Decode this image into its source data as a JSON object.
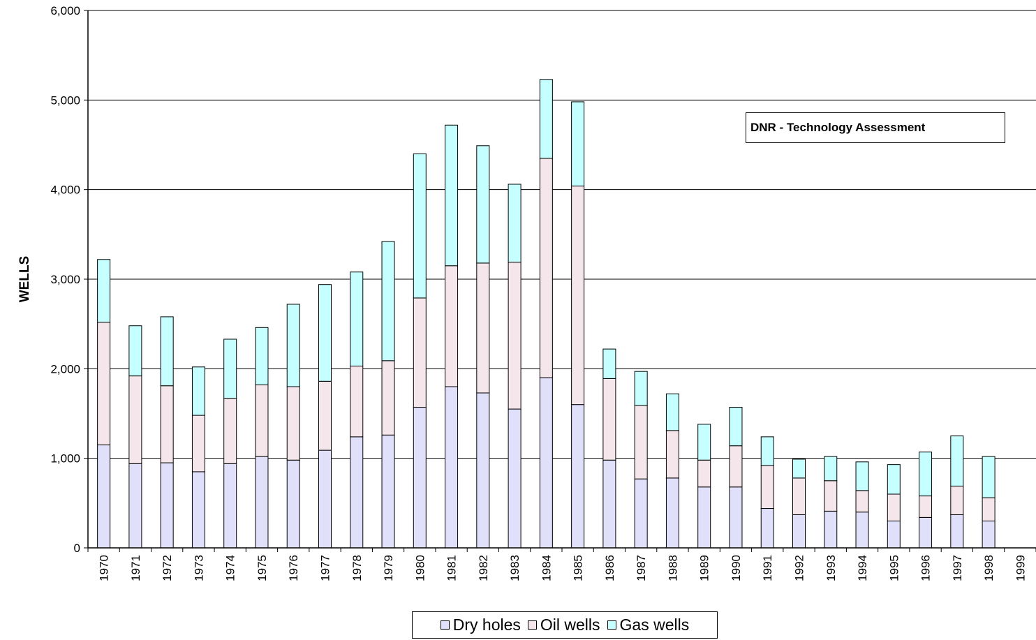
{
  "chart_data": {
    "type": "bar",
    "stacked": true,
    "title": "",
    "xlabel": "",
    "ylabel": "WELLS",
    "ylim": [
      0,
      6000
    ],
    "yticks": [
      "0",
      "1,000",
      "2,000",
      "3,000",
      "4,000",
      "5,000",
      "6,000"
    ],
    "grid": true,
    "legend_position": "bottom",
    "annotation": "DNR - Technology Assessment",
    "categories": [
      "1970",
      "1971",
      "1972",
      "1973",
      "1974",
      "1975",
      "1976",
      "1977",
      "1978",
      "1979",
      "1980",
      "1981",
      "1982",
      "1983",
      "1984",
      "1985",
      "1986",
      "1987",
      "1988",
      "1989",
      "1990",
      "1991",
      "1992",
      "1993",
      "1994",
      "1995",
      "1996",
      "1997",
      "1998",
      "1999"
    ],
    "series": [
      {
        "name": "Dry holes",
        "color": "#e0e0fb",
        "values": [
          1150,
          940,
          950,
          850,
          940,
          1020,
          980,
          1090,
          1240,
          1260,
          1570,
          1800,
          1730,
          1550,
          1900,
          1600,
          980,
          770,
          780,
          680,
          680,
          440,
          370,
          410,
          400,
          300,
          340,
          370,
          300,
          0
        ]
      },
      {
        "name": "Oil wells",
        "color": "#f4e6ea",
        "values": [
          1370,
          980,
          860,
          630,
          730,
          800,
          820,
          770,
          790,
          830,
          1220,
          1350,
          1450,
          1640,
          2450,
          2440,
          910,
          820,
          530,
          300,
          460,
          480,
          410,
          340,
          240,
          300,
          240,
          320,
          260,
          0
        ]
      },
      {
        "name": "Gas wells",
        "color": "#c6ffff",
        "values": [
          700,
          560,
          770,
          540,
          660,
          640,
          920,
          1080,
          1050,
          1330,
          1610,
          1570,
          1310,
          870,
          880,
          940,
          330,
          380,
          410,
          400,
          430,
          320,
          210,
          270,
          320,
          330,
          490,
          560,
          460,
          0
        ]
      }
    ]
  }
}
